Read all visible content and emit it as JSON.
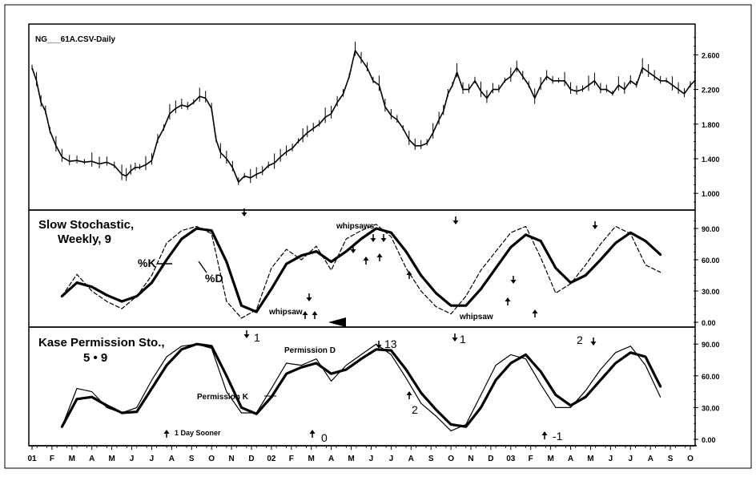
{
  "chart_data": [
    {
      "type": "line",
      "title": "NG___61A.CSV-Daily",
      "ylim": [
        0.9,
        2.9
      ],
      "y_ticks": [
        "2.600",
        "2.200",
        "1.800",
        "1.400",
        "1.000"
      ],
      "y_tick_values": [
        2.6,
        2.2,
        1.8,
        1.4,
        1.0
      ],
      "x": [
        0.0,
        0.3,
        0.6,
        0.9,
        1.2,
        1.6,
        2.0,
        2.5,
        3.0,
        3.5,
        4.0,
        4.5,
        5.0,
        5.5,
        6.0,
        6.3,
        6.6,
        6.9,
        7.2,
        7.6,
        8.0,
        8.4,
        8.8,
        9.2,
        9.6,
        10.0,
        10.4,
        10.8,
        11.2,
        11.6,
        12.0,
        12.3,
        12.6,
        13.0,
        13.4,
        13.8,
        14.2,
        14.6,
        15.0,
        15.4,
        15.8,
        16.2,
        16.6,
        17.0,
        17.4,
        17.8,
        18.1,
        18.4,
        18.8,
        19.2,
        19.6,
        20.0,
        20.4,
        20.8,
        21.2,
        21.6,
        22.0,
        22.4,
        22.8,
        23.2,
        23.6,
        24.0,
        24.4,
        24.8,
        25.2,
        25.6,
        26.0,
        26.4,
        26.8,
        27.2,
        27.5,
        27.8,
        28.1,
        28.4,
        28.8,
        29.2,
        29.6,
        30.0,
        30.4,
        30.8,
        31.2,
        31.6,
        32.0,
        32.4,
        32.8,
        33.2,
        33.6,
        34.0,
        34.4,
        34.8,
        35.2,
        35.6,
        36.0,
        36.4,
        36.8,
        37.2,
        37.6,
        38.0,
        38.4,
        38.8,
        39.2,
        39.6,
        40.0,
        40.4,
        40.8,
        41.2,
        41.6,
        42.0,
        42.4,
        42.8,
        43.2,
        43.6,
        44.0,
        44.3
      ],
      "values": [
        2.45,
        2.3,
        2.05,
        1.95,
        1.72,
        1.55,
        1.42,
        1.37,
        1.38,
        1.36,
        1.37,
        1.34,
        1.36,
        1.32,
        1.22,
        1.2,
        1.26,
        1.3,
        1.3,
        1.33,
        1.38,
        1.62,
        1.75,
        1.92,
        1.98,
        2.02,
        2.0,
        2.05,
        2.12,
        2.1,
        1.98,
        1.62,
        1.47,
        1.4,
        1.3,
        1.13,
        1.2,
        1.18,
        1.22,
        1.25,
        1.32,
        1.35,
        1.42,
        1.48,
        1.52,
        1.6,
        1.65,
        1.7,
        1.75,
        1.8,
        1.88,
        1.92,
        2.05,
        2.15,
        2.35,
        2.65,
        2.55,
        2.45,
        2.3,
        2.25,
        2.0,
        1.9,
        1.85,
        1.75,
        1.62,
        1.55,
        1.55,
        1.58,
        1.7,
        1.85,
        1.95,
        2.15,
        2.25,
        2.4,
        2.2,
        2.2,
        2.3,
        2.18,
        2.1,
        2.2,
        2.2,
        2.3,
        2.35,
        2.45,
        2.35,
        2.25,
        2.1,
        2.25,
        2.35,
        2.3,
        2.3,
        2.3,
        2.2,
        2.18,
        2.2,
        2.25,
        2.3,
        2.2,
        2.2,
        2.15,
        2.25,
        2.2,
        2.3,
        2.25,
        2.45,
        2.4,
        2.35,
        2.3,
        2.3,
        2.25,
        2.2,
        2.15,
        2.25,
        2.3
      ]
    },
    {
      "type": "line",
      "title": "Slow Stochastic,",
      "subtitle": "Weekly, 9",
      "ylim": [
        0,
        100
      ],
      "y_ticks": [
        "90.00",
        "60.00",
        "30.00",
        "0.00"
      ],
      "y_tick_values": [
        90,
        60,
        30,
        0
      ],
      "x": [
        2,
        3,
        4,
        5,
        6,
        7,
        8,
        9,
        10,
        11,
        12,
        13,
        14,
        15,
        16,
        17,
        18,
        19,
        20,
        21,
        22,
        23,
        24,
        25,
        26,
        27,
        28,
        29,
        30,
        31,
        32,
        33,
        34,
        35,
        36,
        37,
        38,
        39,
        40,
        41,
        42
      ],
      "series": [
        {
          "name": "%K",
          "values": [
            25,
            46,
            30,
            20,
            13,
            25,
            45,
            76,
            88,
            92,
            85,
            20,
            4,
            12,
            52,
            70,
            60,
            73,
            50,
            80,
            88,
            94,
            82,
            52,
            30,
            15,
            8,
            25,
            50,
            68,
            86,
            92,
            62,
            28,
            37,
            55,
            75,
            92,
            85,
            55,
            48
          ]
        },
        {
          "name": "%D",
          "values": [
            25,
            38,
            34,
            26,
            20,
            25,
            38,
            60,
            80,
            90,
            88,
            58,
            16,
            10,
            32,
            56,
            64,
            68,
            58,
            68,
            80,
            90,
            86,
            68,
            45,
            28,
            16,
            16,
            32,
            52,
            72,
            84,
            78,
            52,
            38,
            45,
            60,
            76,
            86,
            78,
            65
          ]
        }
      ],
      "annotations": [
        "%K",
        "%D",
        "whipsaw",
        "whipsaws",
        "whipsaw"
      ]
    },
    {
      "type": "line",
      "title": "Kase Permission Sto.,",
      "subtitle": "5 • 9",
      "ylim": [
        0,
        100
      ],
      "y_ticks": [
        "90.00",
        "60.00",
        "30.00",
        "0.00"
      ],
      "y_tick_values": [
        90,
        60,
        30,
        0
      ],
      "x": [
        2,
        3,
        4,
        5,
        6,
        7,
        8,
        9,
        10,
        11,
        12,
        13,
        14,
        15,
        16,
        17,
        18,
        19,
        20,
        21,
        22,
        23,
        24,
        25,
        26,
        27,
        28,
        29,
        30,
        31,
        32,
        33,
        34,
        35,
        36,
        37,
        38,
        39,
        40,
        41,
        42
      ],
      "series": [
        {
          "name": "Permission K",
          "values": [
            12,
            48,
            45,
            30,
            25,
            30,
            56,
            78,
            88,
            90,
            86,
            45,
            25,
            25,
            48,
            72,
            70,
            76,
            55,
            70,
            80,
            90,
            80,
            58,
            34,
            22,
            8,
            14,
            42,
            70,
            80,
            76,
            52,
            30,
            30,
            46,
            66,
            82,
            88,
            70,
            40
          ]
        },
        {
          "name": "Permission D",
          "values": [
            12,
            38,
            40,
            32,
            25,
            26,
            48,
            70,
            85,
            90,
            88,
            60,
            30,
            24,
            40,
            62,
            68,
            72,
            62,
            66,
            76,
            85,
            84,
            66,
            44,
            28,
            14,
            12,
            30,
            56,
            72,
            80,
            64,
            42,
            32,
            40,
            56,
            72,
            82,
            78,
            50
          ]
        }
      ],
      "annotations": [
        "Permission D",
        "Permission K",
        "1 Day Sooner",
        "1",
        "0",
        "13",
        "2",
        "1",
        "-1",
        "2"
      ]
    }
  ],
  "x_axis": {
    "ticks": [
      "01",
      "F",
      "M",
      "A",
      "M",
      "J",
      "J",
      "A",
      "S",
      "O",
      "N",
      "D",
      "02",
      "F",
      "M",
      "A",
      "M",
      "J",
      "J",
      "A",
      "S",
      "O",
      "N",
      "D",
      "03",
      "F",
      "M",
      "A",
      "M",
      "J",
      "J",
      "A",
      "S",
      "O"
    ]
  },
  "panel1": {
    "title": "NG___61A.CSV-Daily"
  },
  "panel2": {
    "title_line1": "Slow Stochastic,",
    "title_line2": "Weekly, 9",
    "k_label": "%K",
    "d_label": "%D",
    "whipsaw_1": "whipsaw",
    "whipsaws": "whipsaws",
    "whipsaw_2": "whipsaw"
  },
  "panel3": {
    "title_line1": "Kase Permission Sto.,",
    "title_line2": "5 • 9",
    "perm_d": "Permission D",
    "perm_k": "Permission K",
    "day_sooner": "1 Day Sooner",
    "n_1a": "1",
    "n_0": "0",
    "n_13": "13",
    "n_2a": "2",
    "n_1b": "1",
    "n_neg1": "-1",
    "n_2b": "2"
  }
}
